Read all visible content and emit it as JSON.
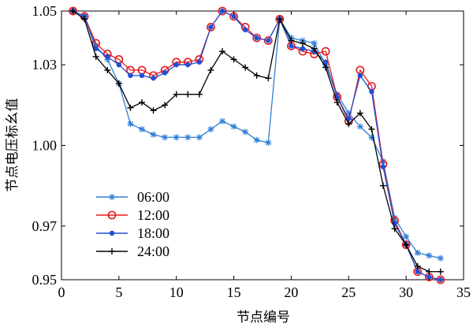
{
  "chart_data": {
    "type": "line",
    "xlabel": "节点编号",
    "ylabel": "节点电压标幺值",
    "xlim": [
      0,
      35
    ],
    "ylim": [
      0.95,
      1.05
    ],
    "xticks": [
      0,
      5,
      10,
      15,
      20,
      25,
      30,
      35
    ],
    "yticks": [
      0.95,
      0.97,
      1.0,
      1.03,
      1.05
    ],
    "ytick_labels": [
      "0.95",
      "0.97",
      "1.00",
      "1.03",
      "1.05"
    ],
    "legend_position": "lower-left",
    "grid": false,
    "x": [
      1,
      2,
      3,
      4,
      5,
      6,
      7,
      8,
      9,
      10,
      11,
      12,
      13,
      14,
      15,
      16,
      17,
      18,
      19,
      20,
      21,
      22,
      23,
      24,
      25,
      26,
      27,
      28,
      29,
      30,
      31,
      32,
      33
    ],
    "series": [
      {
        "name": "06:00",
        "color": "#2e7fd6",
        "marker": "asterisk",
        "values": [
          1.05,
          1.048,
          1.037,
          1.032,
          1.023,
          1.008,
          1.006,
          1.004,
          1.003,
          1.003,
          1.003,
          1.003,
          1.006,
          1.009,
          1.007,
          1.005,
          1.002,
          1.001,
          1.047,
          1.04,
          1.039,
          1.038,
          1.03,
          1.019,
          1.012,
          1.007,
          1.003,
          0.994,
          0.973,
          0.966,
          0.96,
          0.959,
          0.958
        ]
      },
      {
        "name": "12:00",
        "color": "#e31a1c",
        "marker": "circle-open",
        "values": [
          1.05,
          1.048,
          1.038,
          1.034,
          1.032,
          1.028,
          1.028,
          1.026,
          1.028,
          1.031,
          1.031,
          1.032,
          1.044,
          1.05,
          1.048,
          1.044,
          1.04,
          1.039,
          1.047,
          1.037,
          1.035,
          1.034,
          1.035,
          1.018,
          1.009,
          1.028,
          1.022,
          0.993,
          0.972,
          0.963,
          0.953,
          0.951,
          0.95
        ]
      },
      {
        "name": "18:00",
        "color": "#1f4fd6",
        "marker": "dot",
        "values": [
          1.05,
          1.048,
          1.036,
          1.033,
          1.03,
          1.026,
          1.026,
          1.025,
          1.027,
          1.03,
          1.03,
          1.031,
          1.044,
          1.05,
          1.048,
          1.043,
          1.04,
          1.039,
          1.047,
          1.037,
          1.036,
          1.035,
          1.031,
          1.018,
          1.01,
          1.026,
          1.02,
          0.992,
          0.971,
          0.963,
          0.953,
          0.951,
          0.95
        ]
      },
      {
        "name": "24:00",
        "color": "#000000",
        "marker": "plus",
        "values": [
          1.05,
          1.047,
          1.033,
          1.028,
          1.023,
          1.014,
          1.016,
          1.013,
          1.015,
          1.019,
          1.019,
          1.019,
          1.028,
          1.035,
          1.032,
          1.029,
          1.026,
          1.025,
          1.047,
          1.039,
          1.038,
          1.036,
          1.029,
          1.016,
          1.008,
          1.012,
          1.006,
          0.985,
          0.969,
          0.963,
          0.955,
          0.953,
          0.953
        ]
      }
    ]
  }
}
